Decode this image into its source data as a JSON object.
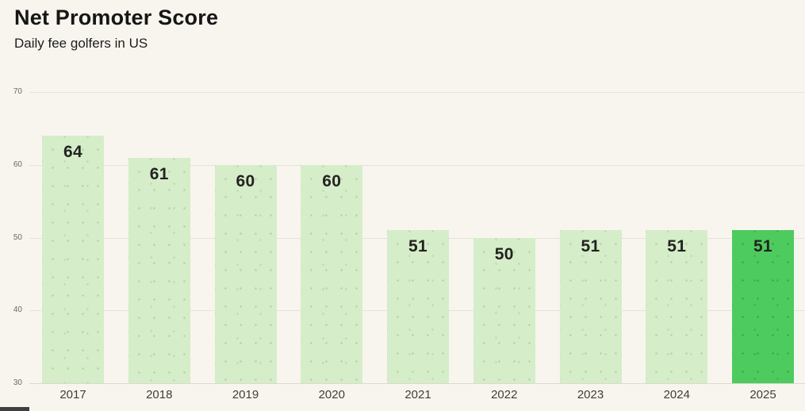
{
  "header": {
    "title": "Net Promoter Score",
    "subtitle": "Daily fee golfers in US"
  },
  "chart_data": {
    "type": "bar",
    "title": "Net Promoter Score",
    "subtitle": "Daily fee golfers in US",
    "categories": [
      "2017",
      "2018",
      "2019",
      "2020",
      "2021",
      "2022",
      "2023",
      "2024",
      "2025"
    ],
    "values": [
      64,
      61,
      60,
      60,
      51,
      50,
      51,
      51,
      51
    ],
    "xlabel": "",
    "ylabel": "",
    "ylim": [
      30,
      70
    ],
    "yticks": [
      30,
      40,
      50,
      60,
      70
    ],
    "grid": true,
    "legend": "none",
    "highlight_index": 8,
    "colors": {
      "background": "#f8f5ef",
      "bar": "#d5edc9",
      "bar_highlight": "#4ecb5e",
      "value_label": "#232320",
      "axis_tick_text": "#6a6964",
      "x_tick_text": "#403e39",
      "gridline": "#e6e3db"
    }
  }
}
